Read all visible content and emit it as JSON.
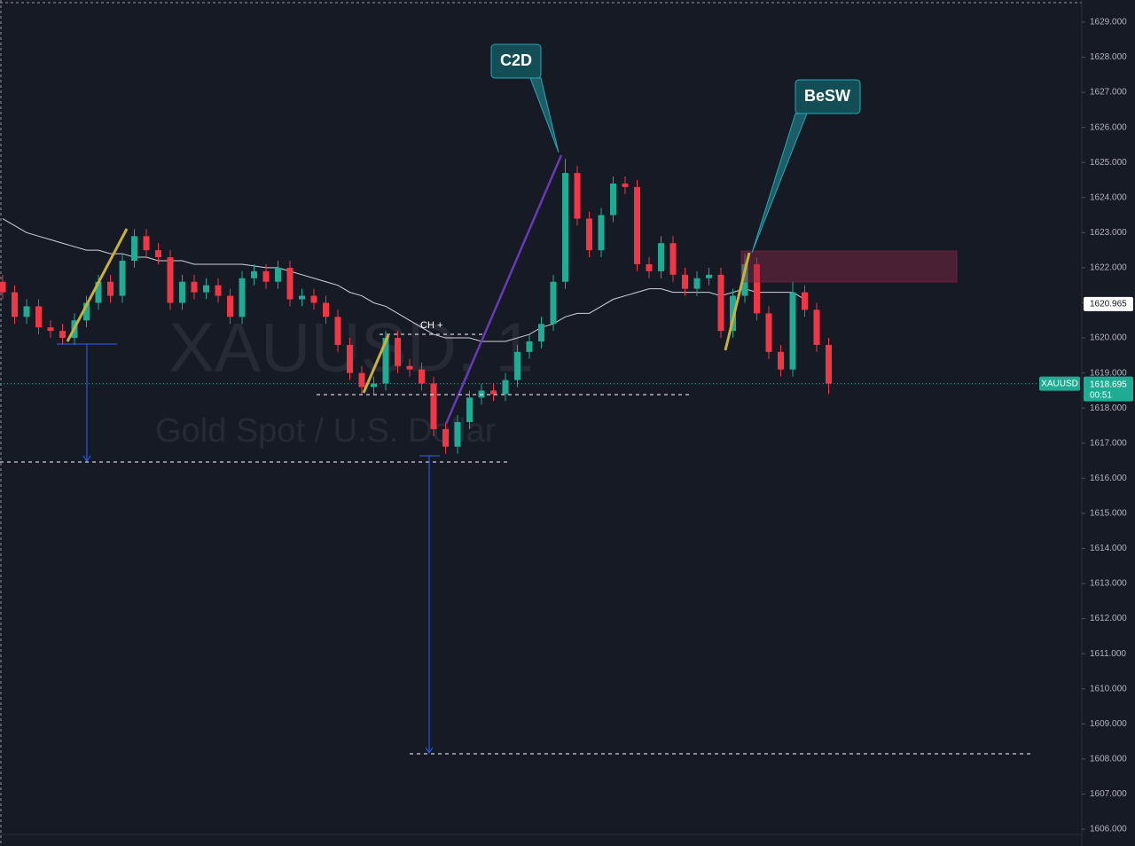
{
  "chart_data": {
    "type": "candlestick",
    "watermark": "XAUUSD, 1",
    "description": "Gold Spot / U.S. Dollar",
    "up_color": "#22ab94",
    "down_color": "#f23645",
    "open": [
      1621.6,
      1621.3,
      1620.6,
      1620.9,
      1620.3,
      1620.2,
      1620.0,
      1620.5,
      1621.0,
      1621.6,
      1621.2,
      1622.2,
      1622.9,
      1622.5,
      1622.3,
      1621.0,
      1621.6,
      1621.3,
      1621.5,
      1621.2,
      1620.6,
      1621.7,
      1621.9,
      1621.6,
      1622.0,
      1621.1,
      1621.2,
      1621.0,
      1620.6,
      1619.8,
      1619.0,
      1618.6,
      1618.7,
      1620.0,
      1619.2,
      1619.1,
      1618.7,
      1617.4,
      1616.9,
      1617.6,
      1618.3,
      1618.5,
      1618.4,
      1618.8,
      1619.6,
      1619.9,
      1620.4,
      1621.6,
      1624.7,
      1623.4,
      1622.5,
      1623.5,
      1624.4,
      1624.3,
      1622.1,
      1621.9,
      1622.7,
      1621.8,
      1621.4,
      1621.7,
      1621.8,
      1620.2,
      1621.2,
      1622.1,
      1620.7,
      1619.6,
      1619.1,
      1621.3,
      1620.8,
      1619.8
    ],
    "high": [
      1621.8,
      1621.5,
      1621.1,
      1621.1,
      1620.5,
      1620.4,
      1620.7,
      1621.2,
      1621.8,
      1621.8,
      1622.4,
      1623.1,
      1623.1,
      1622.7,
      1622.5,
      1621.8,
      1621.8,
      1621.7,
      1621.7,
      1621.4,
      1621.9,
      1622.1,
      1622.1,
      1622.2,
      1622.2,
      1621.4,
      1621.4,
      1621.2,
      1620.8,
      1620.0,
      1619.2,
      1618.9,
      1620.2,
      1620.2,
      1619.4,
      1619.3,
      1618.9,
      1617.6,
      1617.8,
      1618.5,
      1618.7,
      1618.7,
      1619.0,
      1619.8,
      1620.1,
      1620.6,
      1621.8,
      1625.1,
      1624.9,
      1623.6,
      1623.7,
      1624.6,
      1624.6,
      1624.5,
      1622.3,
      1622.9,
      1622.9,
      1622.0,
      1621.9,
      1622.0,
      1622.0,
      1621.4,
      1622.4,
      1622.3,
      1620.9,
      1619.8,
      1621.6,
      1621.5,
      1621.0,
      1620.0
    ],
    "low": [
      1621.1,
      1620.4,
      1620.4,
      1620.1,
      1620.0,
      1619.8,
      1619.8,
      1620.3,
      1620.8,
      1621.0,
      1621.0,
      1622.0,
      1622.3,
      1622.1,
      1620.8,
      1620.8,
      1621.1,
      1621.1,
      1621.0,
      1620.4,
      1620.4,
      1621.5,
      1621.4,
      1621.4,
      1620.9,
      1620.9,
      1620.8,
      1620.4,
      1619.6,
      1618.8,
      1618.4,
      1618.4,
      1618.5,
      1619.0,
      1618.9,
      1618.5,
      1617.2,
      1616.7,
      1616.7,
      1617.4,
      1618.1,
      1618.2,
      1618.2,
      1618.6,
      1619.4,
      1619.7,
      1620.2,
      1621.4,
      1623.2,
      1622.3,
      1622.3,
      1623.3,
      1624.1,
      1621.9,
      1621.7,
      1621.7,
      1621.6,
      1621.2,
      1621.2,
      1621.5,
      1620.0,
      1620.0,
      1621.0,
      1620.5,
      1619.4,
      1618.9,
      1618.9,
      1620.6,
      1619.6,
      1618.4
    ],
    "close": [
      1621.3,
      1620.6,
      1620.9,
      1620.3,
      1620.2,
      1620.0,
      1620.5,
      1621.0,
      1621.6,
      1621.2,
      1622.2,
      1622.9,
      1622.5,
      1622.3,
      1621.0,
      1621.6,
      1621.3,
      1621.5,
      1621.2,
      1620.6,
      1621.7,
      1621.9,
      1621.6,
      1622.0,
      1621.1,
      1621.2,
      1621.0,
      1620.6,
      1619.8,
      1619.0,
      1618.6,
      1618.7,
      1620.0,
      1619.2,
      1619.1,
      1618.7,
      1617.4,
      1616.9,
      1617.6,
      1618.3,
      1618.5,
      1618.4,
      1618.8,
      1619.6,
      1619.9,
      1620.4,
      1621.6,
      1624.7,
      1623.4,
      1622.5,
      1623.5,
      1624.4,
      1624.3,
      1622.1,
      1621.9,
      1622.7,
      1621.8,
      1621.4,
      1621.7,
      1621.8,
      1620.2,
      1621.2,
      1622.1,
      1620.7,
      1619.6,
      1619.1,
      1621.3,
      1620.8,
      1619.8,
      1618.7
    ],
    "moving_average": {
      "color": "#d1d4dc",
      "values": [
        1623.4,
        1623.2,
        1623.0,
        1622.9,
        1622.8,
        1622.7,
        1622.6,
        1622.5,
        1622.5,
        1622.4,
        1622.4,
        1622.3,
        1622.3,
        1622.2,
        1622.2,
        1622.2,
        1622.1,
        1622.1,
        1622.1,
        1622.1,
        1622.1,
        1622.05,
        1622.0,
        1622.0,
        1621.9,
        1621.8,
        1621.7,
        1621.6,
        1621.5,
        1621.3,
        1621.2,
        1621.0,
        1620.9,
        1620.7,
        1620.5,
        1620.3,
        1620.1,
        1620.0,
        1620.0,
        1620.0,
        1619.9,
        1619.9,
        1619.9,
        1620.0,
        1620.1,
        1620.3,
        1620.4,
        1620.6,
        1620.7,
        1620.7,
        1620.9,
        1621.1,
        1621.2,
        1621.3,
        1621.4,
        1621.4,
        1621.3,
        1621.3,
        1621.3,
        1621.3,
        1621.2,
        1621.3,
        1621.4,
        1621.3,
        1621.3,
        1621.3,
        1621.3,
        1621.1,
        null,
        null
      ]
    },
    "ma_price": 1620.965,
    "last_price": 1618.695,
    "symbol": "XAUUSD",
    "countdown": "00:51",
    "annotations": [
      "C2D",
      "BeSW",
      "CH +"
    ],
    "ylim": [
      1605.52,
      1629.63
    ],
    "yticks": [
      {
        "value": 1606,
        "label": "1606.000"
      },
      {
        "value": 1607,
        "label": "1607.000"
      },
      {
        "value": 1608,
        "label": "1608.000"
      },
      {
        "value": 1609,
        "label": "1609.000"
      },
      {
        "value": 1610,
        "label": "1610.000"
      },
      {
        "value": 1611,
        "label": "1611.000"
      },
      {
        "value": 1612,
        "label": "1612.000"
      },
      {
        "value": 1613,
        "label": "1613.000"
      },
      {
        "value": 1614,
        "label": "1614.000"
      },
      {
        "value": 1615,
        "label": "1615.000"
      },
      {
        "value": 1616,
        "label": "1616.000"
      },
      {
        "value": 1617,
        "label": "1617.000"
      },
      {
        "value": 1618,
        "label": "1618.000"
      },
      {
        "value": 1619,
        "label": "1619.000"
      },
      {
        "value": 1620,
        "label": "1620.000"
      },
      {
        "value": 1621,
        "label": "1621.000"
      },
      {
        "value": 1622,
        "label": "1622.000"
      },
      {
        "value": 1623,
        "label": "1623.000"
      },
      {
        "value": 1624,
        "label": "1624.000"
      },
      {
        "value": 1625,
        "label": "1625.000"
      },
      {
        "value": 1626,
        "label": "1626.000"
      },
      {
        "value": 1627,
        "label": "1627.000"
      },
      {
        "value": 1628,
        "label": "1628.000"
      },
      {
        "value": 1629,
        "label": "1629.000"
      }
    ]
  }
}
